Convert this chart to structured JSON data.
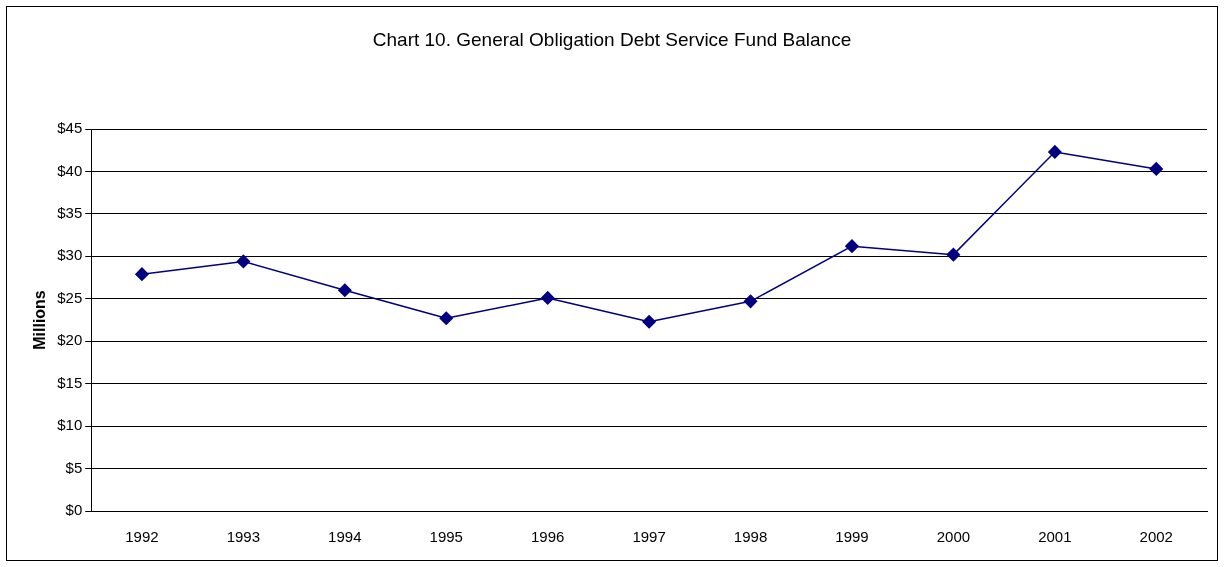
{
  "chart_data": {
    "type": "line",
    "title": "Chart 10.  General Obligation Debt Service Fund Balance",
    "ylabel": "Millions",
    "categories": [
      "1992",
      "1993",
      "1994",
      "1995",
      "1996",
      "1997",
      "1998",
      "1999",
      "2000",
      "2001",
      "2002"
    ],
    "series": [
      {
        "color": "#000080",
        "values": [
          27.9,
          29.4,
          26.0,
          22.7,
          25.1,
          22.3,
          24.7,
          31.2,
          30.2,
          42.3,
          40.3
        ]
      }
    ],
    "ylim": [
      0,
      45
    ],
    "yticks": [
      {
        "value": 0,
        "label": "$0"
      },
      {
        "value": 5,
        "label": "$5"
      },
      {
        "value": 10,
        "label": "$10"
      },
      {
        "value": 15,
        "label": "$15"
      },
      {
        "value": 20,
        "label": "$20"
      },
      {
        "value": 25,
        "label": "$25"
      },
      {
        "value": 30,
        "label": "$30"
      },
      {
        "value": 35,
        "label": "$35"
      },
      {
        "value": 40,
        "label": "$40"
      },
      {
        "value": 45,
        "label": "$45"
      }
    ],
    "grid": "y",
    "legend": false,
    "marker": "diamond",
    "line_style": "solid"
  }
}
